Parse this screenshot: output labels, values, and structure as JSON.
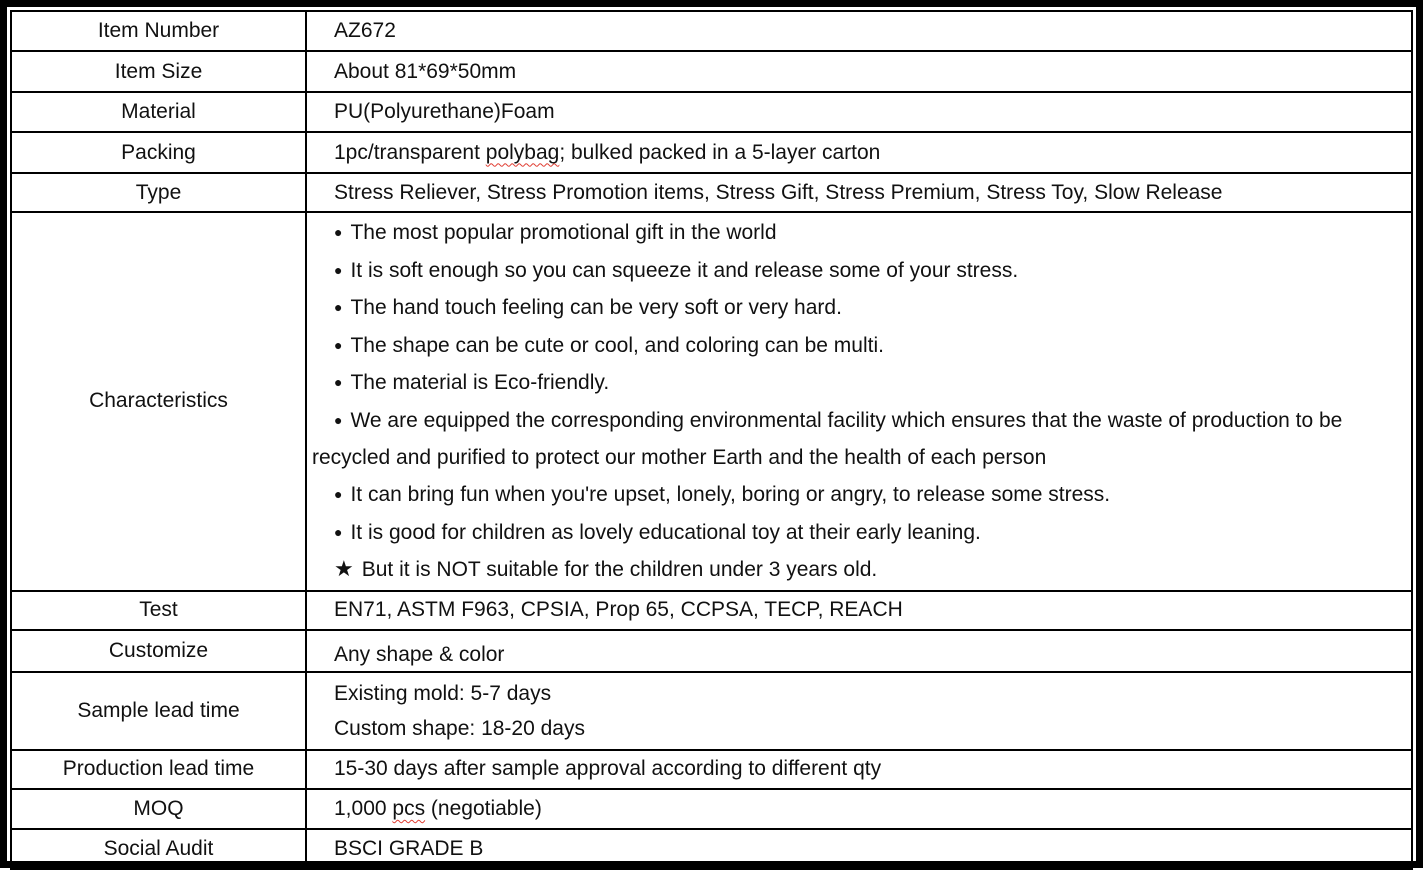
{
  "document": {
    "kind": "product-specification-table",
    "colors": {
      "border": "#000000",
      "text": "#111111",
      "background": "#ffffff",
      "spellcheck_squiggle": "#e03c31"
    },
    "rows": [
      {
        "label": "Item Number",
        "lines": [
          {
            "text": "AZ672"
          }
        ]
      },
      {
        "label": "Item Size",
        "lines": [
          {
            "text": "About 81*69*50mm"
          }
        ]
      },
      {
        "label": "Material",
        "lines": [
          {
            "text": "PU(Polyurethane)Foam"
          }
        ]
      },
      {
        "label": "Packing",
        "lines": [
          {
            "text": "1pc/transparent polybag; bulked packed in a 5-layer carton",
            "squiggle": "polybag"
          }
        ]
      },
      {
        "label": "Type",
        "lines": [
          {
            "text": "Stress Reliever, Stress Promotion items, Stress Gift, Stress Premium, Stress Toy, Slow Release"
          }
        ]
      },
      {
        "label": "Characteristics",
        "lines": [
          {
            "marker": "●",
            "text": "The most popular promotional gift in the world"
          },
          {
            "marker": "●",
            "text": "It is soft enough so you can squeeze it and release some of your stress."
          },
          {
            "marker": "●",
            "text": "The hand touch feeling can be very soft or very hard."
          },
          {
            "marker": "●",
            "text": "The shape can be cute or cool, and coloring can be multi."
          },
          {
            "marker": "●",
            "text": "The material is Eco-friendly."
          },
          {
            "marker": "●",
            "text": "We are equipped the corresponding environmental facility which ensures that the waste of production to be recycled and purified to protect our mother Earth and the health of each person"
          },
          {
            "marker": "●",
            "text": "It can bring fun when you're upset, lonely, boring or angry, to release some stress."
          },
          {
            "marker": "●",
            "text": "It is good for children as lovely educational toy at their early leaning."
          },
          {
            "marker": "★",
            "text": "But it is NOT suitable for the children under 3 years old."
          }
        ]
      },
      {
        "label": "Test",
        "lines": [
          {
            "text": "EN71, ASTM F963, CPSIA, Prop 65, CCPSA, TECP, REACH"
          }
        ]
      },
      {
        "label": "Customize",
        "lines": [
          {
            "text": "Any shape & color"
          }
        ]
      },
      {
        "label": "Sample lead time",
        "lines": [
          {
            "text": "Existing mold: 5-7 days"
          },
          {
            "text": "Custom shape: 18-20 days"
          }
        ]
      },
      {
        "label": "Production lead time",
        "lines": [
          {
            "text": "15-30 days after sample approval according to different qty"
          }
        ]
      },
      {
        "label": "MOQ",
        "lines": [
          {
            "text": "1,000 pcs (negotiable)",
            "squiggle": "pcs"
          }
        ]
      },
      {
        "label": "Social Audit",
        "lines": [
          {
            "text": "BSCI GRADE B"
          }
        ]
      }
    ]
  }
}
